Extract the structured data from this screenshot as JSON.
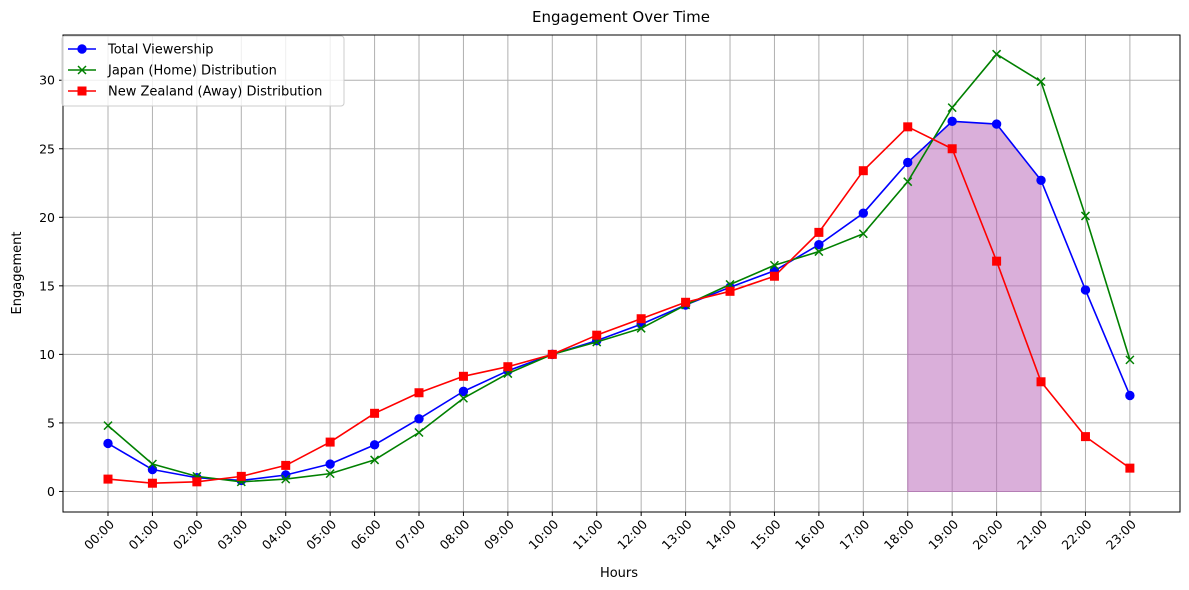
{
  "chart_data": {
    "type": "line",
    "title": "Engagement Over Time",
    "xlabel": "Hours",
    "ylabel": "Engagement",
    "categories": [
      "00:00",
      "01:00",
      "02:00",
      "03:00",
      "04:00",
      "05:00",
      "06:00",
      "07:00",
      "08:00",
      "09:00",
      "10:00",
      "11:00",
      "12:00",
      "13:00",
      "14:00",
      "15:00",
      "16:00",
      "17:00",
      "18:00",
      "19:00",
      "20:00",
      "21:00",
      "22:00",
      "23:00"
    ],
    "ylim": [
      -1.5,
      33.3
    ],
    "yticks": [
      0,
      5,
      10,
      15,
      20,
      25,
      30
    ],
    "grid": true,
    "legend_position": "upper-left",
    "series": [
      {
        "name": "Total Viewership",
        "color": "#0000ff",
        "marker": "circle",
        "values": [
          3.5,
          1.6,
          1.0,
          0.8,
          1.2,
          2.0,
          3.4,
          5.3,
          7.3,
          8.8,
          10.0,
          11.0,
          12.2,
          13.6,
          14.9,
          16.1,
          18.0,
          20.3,
          24.0,
          27.0,
          26.8,
          22.7,
          14.7,
          7.0
        ]
      },
      {
        "name": "Japan (Home) Distribution",
        "color": "#008000",
        "marker": "x",
        "values": [
          4.8,
          2.0,
          1.1,
          0.7,
          0.9,
          1.3,
          2.3,
          4.3,
          6.8,
          8.6,
          10.0,
          10.9,
          11.9,
          13.6,
          15.1,
          16.5,
          17.5,
          18.8,
          22.6,
          28.0,
          31.9,
          29.9,
          20.1,
          9.6
        ]
      },
      {
        "name": "New Zealand (Away) Distribution",
        "color": "#ff0000",
        "marker": "square",
        "values": [
          0.9,
          0.6,
          0.7,
          1.1,
          1.9,
          3.6,
          5.7,
          7.2,
          8.4,
          9.1,
          10.0,
          11.4,
          12.6,
          13.8,
          14.6,
          15.7,
          18.9,
          23.4,
          26.6,
          25.0,
          16.8,
          8.0,
          4.0,
          1.7
        ]
      }
    ],
    "highlight": {
      "series": "Total Viewership",
      "from": "18:00",
      "to": "21:00",
      "color": "#b55fb5",
      "opacity": 0.5
    }
  }
}
